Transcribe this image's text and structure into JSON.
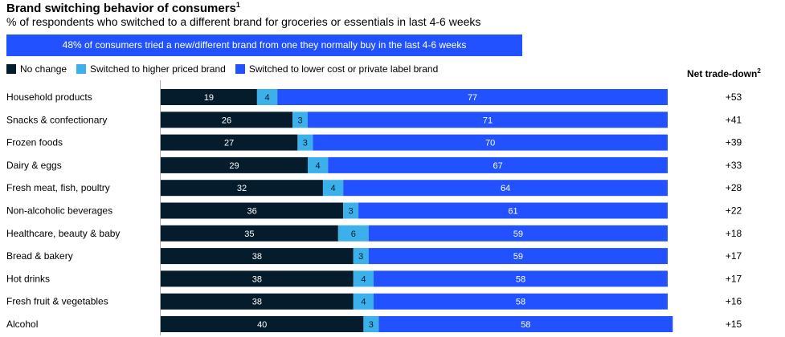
{
  "title": "Brand switching behavior of consumers",
  "title_footnote": "1",
  "subtitle": "% of respondents who switched to a different brand for groceries or essentials in last 4-6 weeks",
  "banner": "48% of consumers tried a new/different brand from one they normally buy in the last 4-6 weeks",
  "net_header": "Net trade-down",
  "net_header_footnote": "2",
  "colors": {
    "no_change": "#051c2c",
    "higher": "#3bb0ea",
    "lower": "#2251ff",
    "banner": "#2251ff"
  },
  "chart_data": {
    "type": "bar",
    "orientation": "horizontal",
    "stacked": true,
    "categories": [
      "Household products",
      "Snacks & confectionary",
      "Frozen foods",
      "Dairy & eggs",
      "Fresh meat, fish, poultry",
      "Non-alcoholic beverages",
      "Healthcare, beauty & baby",
      "Bread & bakery",
      "Hot drinks",
      "Fresh fruit & vegetables",
      "Alcohol"
    ],
    "series": [
      {
        "name": "No change",
        "values": [
          19,
          26,
          27,
          29,
          32,
          36,
          35,
          38,
          38,
          38,
          40
        ]
      },
      {
        "name": "Switched to higher priced brand",
        "values": [
          4,
          3,
          3,
          4,
          4,
          3,
          6,
          3,
          4,
          4,
          3
        ]
      },
      {
        "name": "Switched to lower cost or private label brand",
        "values": [
          77,
          71,
          70,
          67,
          64,
          61,
          59,
          59,
          58,
          58,
          58
        ]
      }
    ],
    "net_trade_down": [
      "+53",
      "+41",
      "+39",
      "+33",
      "+28",
      "+22",
      "+18",
      "+17",
      "+17",
      "+16",
      "+15"
    ],
    "xlim": [
      0,
      100
    ],
    "legend_position": "top-left",
    "grid": false
  }
}
